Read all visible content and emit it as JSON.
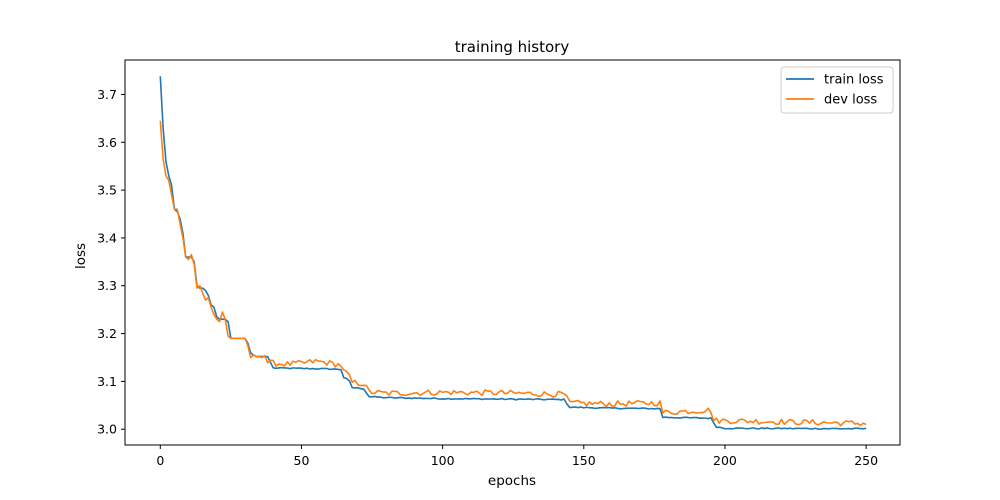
{
  "chart_data": {
    "type": "line",
    "title": "training history",
    "xlabel": "epochs",
    "ylabel": "loss",
    "xlim": [
      -12.5,
      262
    ],
    "ylim": [
      2.967,
      3.772
    ],
    "xticks": [
      0,
      50,
      100,
      150,
      200,
      250
    ],
    "yticks": [
      3.0,
      3.1,
      3.2,
      3.3,
      3.4,
      3.5,
      3.6,
      3.7
    ],
    "ytick_labels": [
      "3.0",
      "3.1",
      "3.2",
      "3.3",
      "3.4",
      "3.5",
      "3.6",
      "3.7"
    ],
    "grid": false,
    "legend": "top-right",
    "epochs": 250,
    "series": [
      {
        "name": "train loss",
        "color": "#1f77b4",
        "keypoints": [
          [
            0,
            3.738
          ],
          [
            1,
            3.63
          ],
          [
            2,
            3.56
          ],
          [
            3,
            3.53
          ],
          [
            4,
            3.51
          ],
          [
            5,
            3.46
          ],
          [
            6,
            3.455
          ],
          [
            7,
            3.44
          ],
          [
            8,
            3.41
          ],
          [
            9,
            3.36
          ],
          [
            10,
            3.36
          ],
          [
            11,
            3.36
          ],
          [
            12,
            3.35
          ],
          [
            13,
            3.3
          ],
          [
            14,
            3.295
          ],
          [
            15,
            3.295
          ],
          [
            16,
            3.29
          ],
          [
            17,
            3.28
          ],
          [
            18,
            3.26
          ],
          [
            19,
            3.255
          ],
          [
            20,
            3.235
          ],
          [
            21,
            3.23
          ],
          [
            22,
            3.23
          ],
          [
            23,
            3.23
          ],
          [
            24,
            3.225
          ],
          [
            25,
            3.19
          ],
          [
            26,
            3.19
          ],
          [
            30,
            3.19
          ],
          [
            31,
            3.18
          ],
          [
            32,
            3.16
          ],
          [
            33,
            3.155
          ],
          [
            34,
            3.152
          ],
          [
            38,
            3.152
          ],
          [
            40,
            3.128
          ],
          [
            50,
            3.127
          ],
          [
            60,
            3.126
          ],
          [
            64,
            3.125
          ],
          [
            65,
            3.108
          ],
          [
            66,
            3.105
          ],
          [
            67,
            3.1
          ],
          [
            68,
            3.087
          ],
          [
            72,
            3.085
          ],
          [
            74,
            3.068
          ],
          [
            80,
            3.066
          ],
          [
            100,
            3.064
          ],
          [
            120,
            3.063
          ],
          [
            143,
            3.062
          ],
          [
            145,
            3.046
          ],
          [
            160,
            3.044
          ],
          [
            177,
            3.043
          ],
          [
            178,
            3.025
          ],
          [
            195,
            3.023
          ],
          [
            197,
            3.005
          ],
          [
            200,
            3.002
          ],
          [
            250,
            3.001
          ]
        ]
      },
      {
        "name": "dev loss",
        "color": "#ff7f0e",
        "keypoints": [
          [
            0,
            3.645
          ],
          [
            1,
            3.565
          ],
          [
            2,
            3.53
          ],
          [
            3,
            3.52
          ],
          [
            4,
            3.49
          ],
          [
            5,
            3.46
          ],
          [
            6,
            3.46
          ],
          [
            7,
            3.43
          ],
          [
            8,
            3.4
          ],
          [
            9,
            3.36
          ],
          [
            10,
            3.355
          ],
          [
            11,
            3.365
          ],
          [
            12,
            3.345
          ],
          [
            13,
            3.295
          ],
          [
            14,
            3.3
          ],
          [
            15,
            3.285
          ],
          [
            16,
            3.27
          ],
          [
            17,
            3.275
          ],
          [
            18,
            3.255
          ],
          [
            19,
            3.24
          ],
          [
            20,
            3.23
          ],
          [
            21,
            3.225
          ],
          [
            22,
            3.245
          ],
          [
            23,
            3.23
          ],
          [
            24,
            3.195
          ],
          [
            25,
            3.19
          ],
          [
            30,
            3.19
          ],
          [
            31,
            3.175
          ],
          [
            32,
            3.15
          ],
          [
            33,
            3.155
          ],
          [
            34,
            3.152
          ],
          [
            35,
            3.155
          ],
          [
            37,
            3.155
          ],
          [
            38,
            3.14
          ],
          [
            40,
            3.138
          ],
          [
            45,
            3.136
          ],
          [
            50,
            3.138
          ],
          [
            55,
            3.142
          ],
          [
            58,
            3.14
          ],
          [
            64,
            3.134
          ],
          [
            65,
            3.12
          ],
          [
            66,
            3.118
          ],
          [
            67,
            3.108
          ],
          [
            68,
            3.098
          ],
          [
            72,
            3.095
          ],
          [
            74,
            3.078
          ],
          [
            80,
            3.075
          ],
          [
            100,
            3.077
          ],
          [
            120,
            3.076
          ],
          [
            143,
            3.073
          ],
          [
            145,
            3.055
          ],
          [
            150,
            3.054
          ],
          [
            160,
            3.053
          ],
          [
            177,
            3.055
          ],
          [
            178,
            3.035
          ],
          [
            195,
            3.04
          ],
          [
            196,
            3.018
          ],
          [
            200,
            3.018
          ],
          [
            250,
            3.012
          ]
        ]
      }
    ]
  }
}
